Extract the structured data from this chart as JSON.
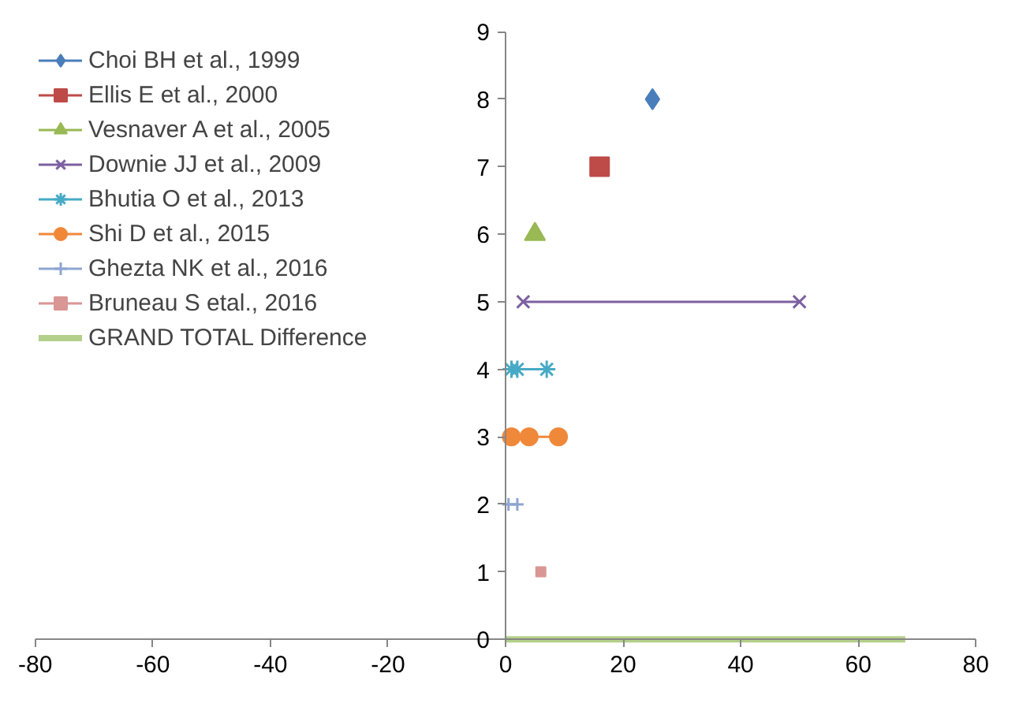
{
  "chart_data": {
    "type": "line",
    "xlim": [
      -80,
      80
    ],
    "ylim": [
      0,
      9
    ],
    "xticks": [
      -80,
      -60,
      -40,
      -20,
      0,
      20,
      40,
      60,
      80
    ],
    "yticks": [
      0,
      1,
      2,
      3,
      4,
      5,
      6,
      7,
      8,
      9
    ],
    "grid": false,
    "legend": "top left",
    "series": [
      {
        "name": "Choi BH et al., 1999",
        "color": "#4a7ebb",
        "marker": "diamond",
        "x": [
          25
        ],
        "values": [
          8
        ]
      },
      {
        "name": "Ellis E et al., 2000",
        "color": "#be4b48",
        "marker": "square",
        "x": [
          16
        ],
        "values": [
          7
        ]
      },
      {
        "name": "Vesnaver A et al., 2005",
        "color": "#98b954",
        "marker": "triangle",
        "x": [
          5
        ],
        "values": [
          6
        ]
      },
      {
        "name": "Downie JJ et al., 2009",
        "color": "#7d60a0",
        "marker": "x",
        "x": [
          3,
          50
        ],
        "values": [
          5,
          5
        ]
      },
      {
        "name": "Bhutia O et al., 2013",
        "color": "#46aac5",
        "marker": "cross",
        "x": [
          1,
          2,
          7
        ],
        "values": [
          4,
          4,
          4
        ]
      },
      {
        "name": "Shi D et al., 2015",
        "color": "#f0883a",
        "marker": "circle",
        "x": [
          1,
          4,
          9
        ],
        "values": [
          3,
          3,
          3
        ]
      },
      {
        "name": "Ghezta NK et al., 2016",
        "color": "#8ea5d1",
        "marker": "cross",
        "x": [
          0.5,
          2
        ],
        "values": [
          2,
          2
        ]
      },
      {
        "name": "Bruneau S etal., 2016",
        "color": "#d99694",
        "marker": "square",
        "x": [
          6
        ],
        "values": [
          1
        ]
      },
      {
        "name": "GRAND TOTAL Difference",
        "color": "#b3cf8a",
        "marker": "none",
        "x": [
          0,
          30,
          68
        ],
        "values": [
          0,
          0,
          0
        ]
      }
    ]
  }
}
